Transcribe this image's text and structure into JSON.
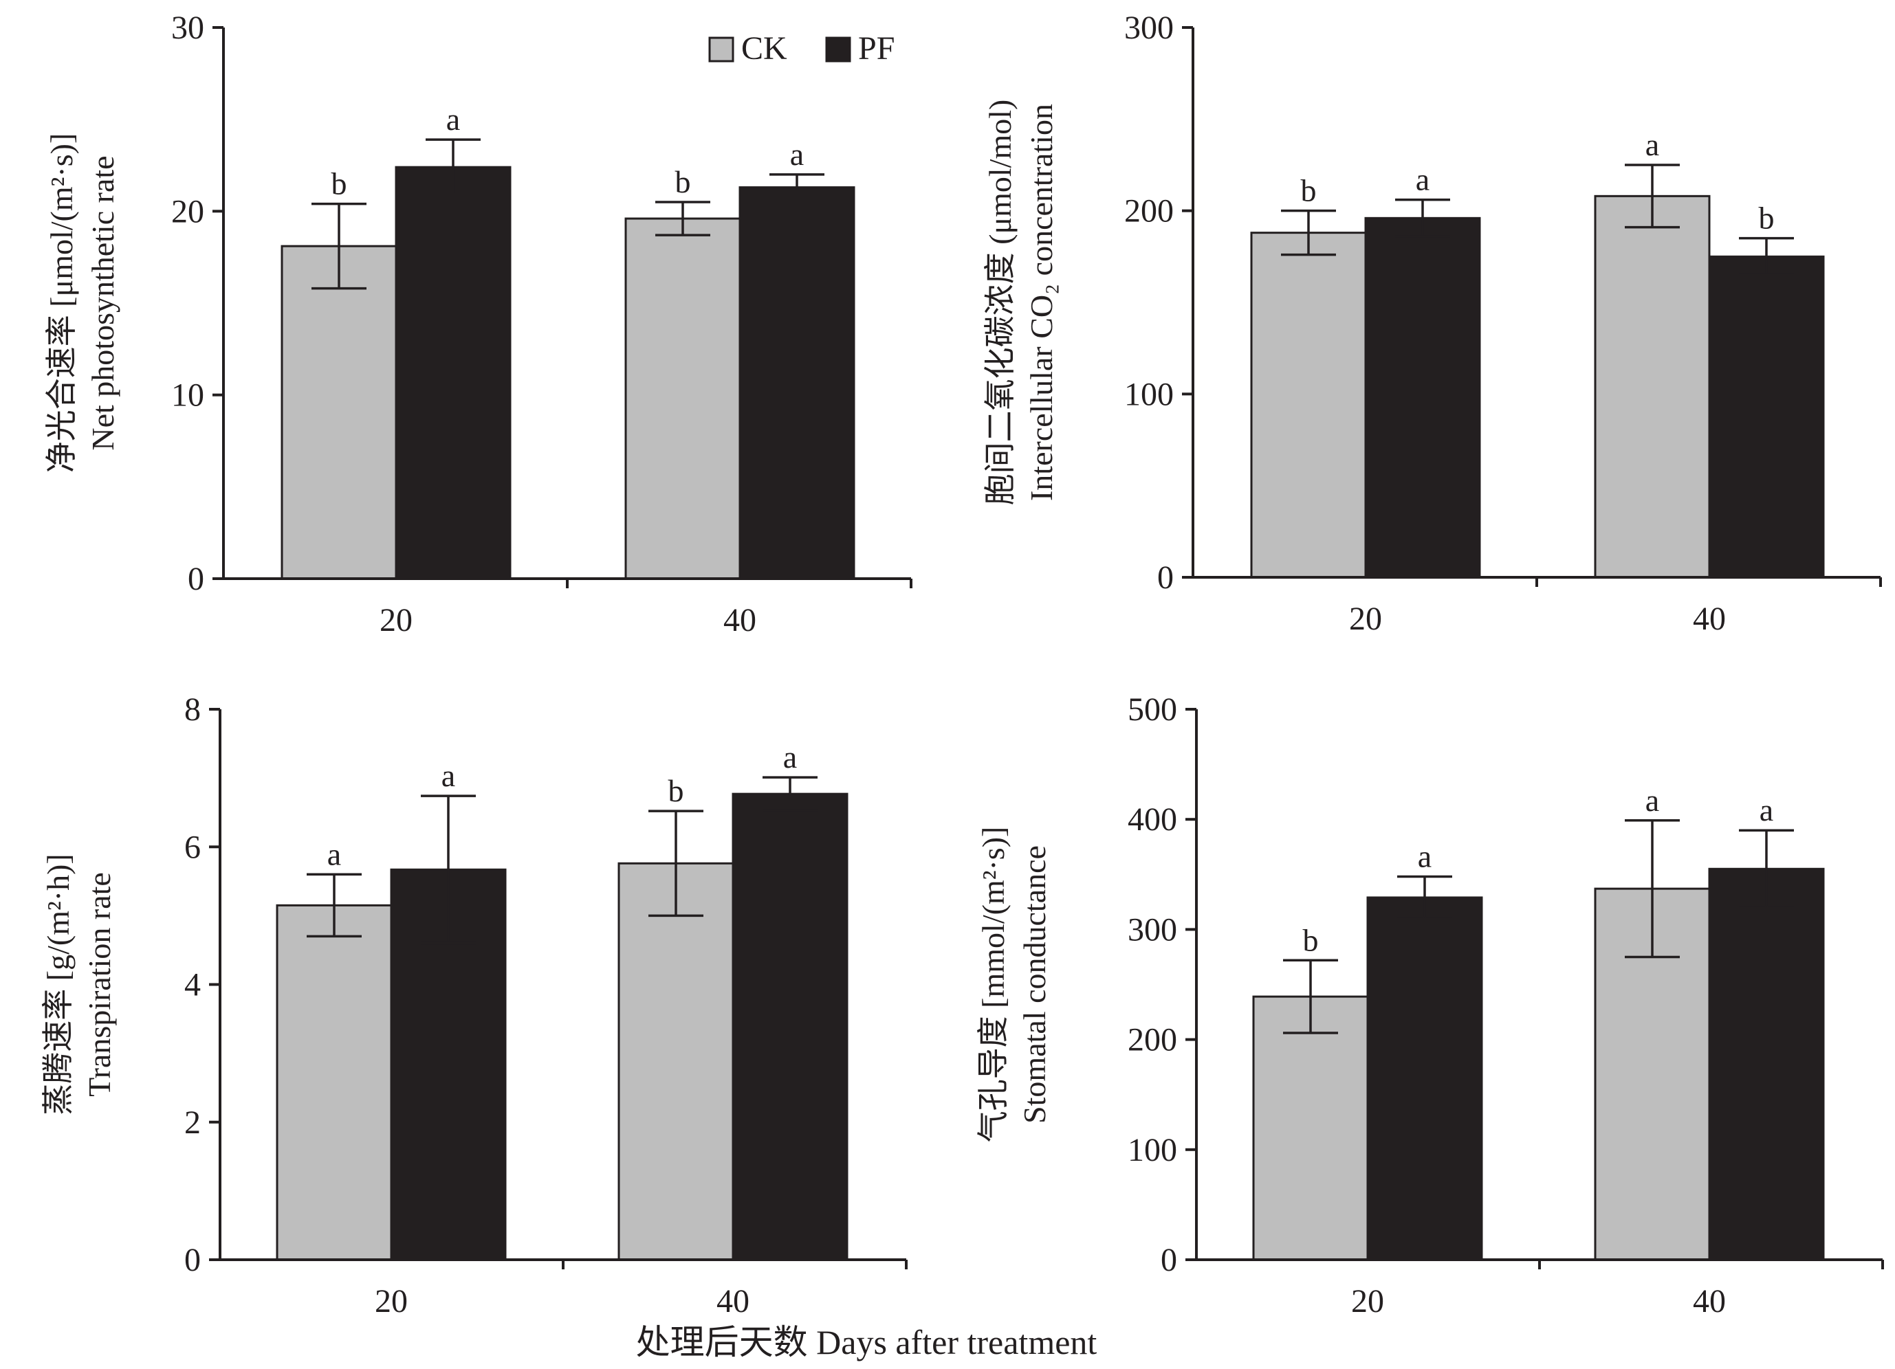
{
  "colors": {
    "ck": "#bebebe",
    "pf": "#231f20",
    "axis": "#231f20"
  },
  "legend": [
    {
      "label": "CK",
      "color": "#bebebe"
    },
    {
      "label": "PF",
      "color": "#231f20"
    }
  ],
  "footer": {
    "xlabel": "处理后天数 Days after treatment"
  },
  "chart_data": [
    {
      "type": "bar",
      "categories": [
        "20",
        "40"
      ],
      "ylim": [
        0,
        30
      ],
      "yticks": [
        0,
        10,
        20,
        30
      ],
      "ylabel_cn": "净光合速率 [μmol/(m²·s)]",
      "ylabel_en": "Net photosynthetic rate",
      "series": [
        {
          "name": "CK",
          "values": [
            18.1,
            19.6
          ],
          "errors": [
            2.3,
            0.9
          ],
          "letters": [
            "b",
            "b"
          ]
        },
        {
          "name": "PF",
          "values": [
            22.4,
            21.3
          ],
          "errors": [
            1.5,
            0.7
          ],
          "letters": [
            "a",
            "a"
          ]
        }
      ]
    },
    {
      "type": "bar",
      "categories": [
        "20",
        "40"
      ],
      "ylim": [
        0,
        300
      ],
      "yticks": [
        0,
        100,
        200,
        300
      ],
      "ylabel_cn": "胞间二氧化碳浓度 (μmol/mol)",
      "ylabel_en": "Intercellular CO₂ concentration",
      "series": [
        {
          "name": "CK",
          "values": [
            188,
            208
          ],
          "errors": [
            12,
            17
          ],
          "letters": [
            "b",
            "a"
          ]
        },
        {
          "name": "PF",
          "values": [
            196,
            175
          ],
          "errors": [
            10,
            10
          ],
          "letters": [
            "a",
            "b"
          ]
        }
      ]
    },
    {
      "type": "bar",
      "categories": [
        "20",
        "40"
      ],
      "ylim": [
        0,
        8
      ],
      "yticks": [
        0,
        2,
        4,
        6,
        8
      ],
      "ylabel_cn": "蒸腾速率 [g/(m²·h)]",
      "ylabel_en": "Transpiration rate",
      "series": [
        {
          "name": "CK",
          "values": [
            5.15,
            5.76
          ],
          "errors": [
            0.45,
            0.76
          ],
          "letters": [
            "a",
            "b"
          ]
        },
        {
          "name": "PF",
          "values": [
            5.67,
            6.77
          ],
          "errors": [
            1.07,
            0.24
          ],
          "letters": [
            "a",
            "a"
          ]
        }
      ]
    },
    {
      "type": "bar",
      "categories": [
        "20",
        "40"
      ],
      "ylim": [
        0,
        500
      ],
      "yticks": [
        0,
        100,
        200,
        300,
        400,
        500
      ],
      "ylabel_cn": "气孔导度 [mmol/(m²·s)]",
      "ylabel_en": "Stomatal conductance",
      "series": [
        {
          "name": "CK",
          "values": [
            239,
            337
          ],
          "errors": [
            33,
            62
          ],
          "letters": [
            "b",
            "a"
          ]
        },
        {
          "name": "PF",
          "values": [
            329,
            355
          ],
          "errors": [
            19,
            35
          ],
          "letters": [
            "a",
            "a"
          ]
        }
      ]
    }
  ]
}
